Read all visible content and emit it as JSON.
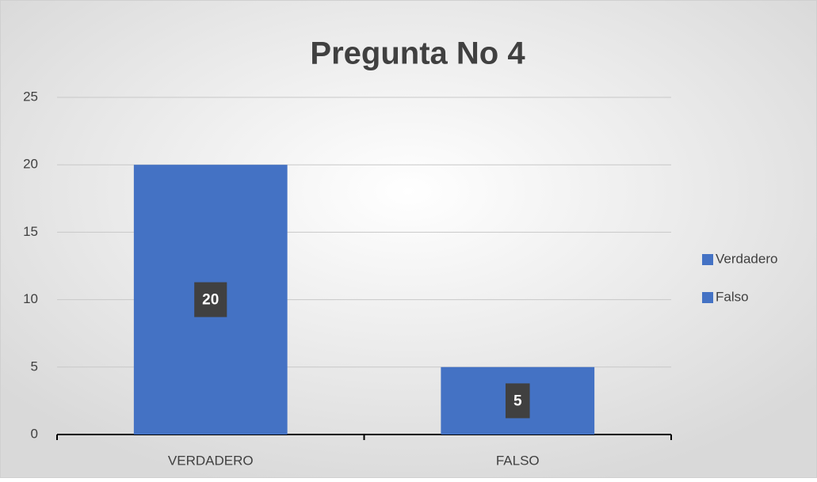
{
  "chart_data": {
    "type": "bar",
    "title": "Pregunta No 4",
    "categories": [
      "VERDADERO",
      "FALSO"
    ],
    "values": [
      20,
      5
    ],
    "colors": [
      "#4472c4",
      "#4472c4"
    ],
    "legend": {
      "entries": [
        "Verdadero",
        "Falso"
      ],
      "position": "right"
    },
    "ylim": [
      0,
      25
    ],
    "yticks": [
      0,
      5,
      10,
      15,
      20,
      25
    ],
    "grid": true,
    "data_labels": true
  }
}
